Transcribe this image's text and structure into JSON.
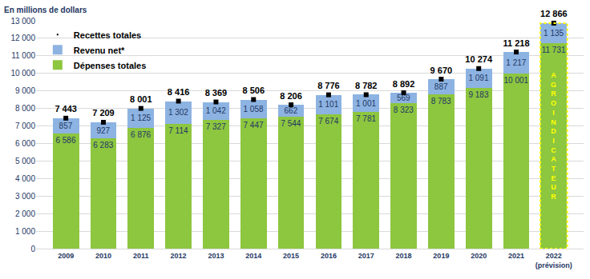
{
  "chart_data": {
    "type": "bar",
    "stacked": true,
    "data_labels": true,
    "grid": true,
    "legend": "upper left",
    "y_label": "En millions de dollars",
    "categories": [
      "2009",
      "2010",
      "2011",
      "2012",
      "2013",
      "2014",
      "2015",
      "2016",
      "2017",
      "2018",
      "2019",
      "2020",
      "2021",
      "2022 (prévision)"
    ],
    "series": [
      {
        "name": "Dépenses totales",
        "type": "bar",
        "color": "#8dc63f",
        "values": [
          6586,
          6283,
          6876,
          7114,
          7327,
          7447,
          7544,
          7674,
          7781,
          8323,
          8783,
          9183,
          10001,
          11731
        ],
        "value_labels": [
          "6 586",
          "6 283",
          "6 876",
          "7 114",
          "7 327",
          "7 447",
          "7 544",
          "7 674",
          "7 781",
          "8 323",
          "8 783",
          "9 183",
          "10 001",
          "11 731"
        ]
      },
      {
        "name": "Revenu net*",
        "type": "bar",
        "color": "#8db3e2",
        "values": [
          857,
          927,
          1125,
          1302,
          1042,
          1058,
          662,
          1101,
          1001,
          569,
          887,
          1091,
          1217,
          1135
        ],
        "value_labels": [
          "857",
          "927",
          "1 125",
          "1 302",
          "1 042",
          "1 058",
          "662",
          "1 101",
          "1 001",
          "569",
          "887",
          "1 091",
          "1 217",
          "1 135"
        ]
      },
      {
        "name": "Recettes totales",
        "type": "text",
        "color": "#000000",
        "values": [
          7443,
          7209,
          8001,
          8416,
          8369,
          8506,
          8206,
          8776,
          8782,
          8892,
          9670,
          10274,
          11218,
          12866
        ],
        "value_labels": [
          "7 443",
          "7 209",
          "8 001",
          "8 416",
          "8 369",
          "8 506",
          "8 206",
          "8 776",
          "8 782",
          "8 892",
          "9 670",
          "10 274",
          "11 218",
          "12 866"
        ]
      }
    ],
    "ylim": [
      0,
      13000
    ],
    "yticks": [
      0,
      {
        "value": 1000,
        "label": "1 000"
      },
      {
        "value": 2000,
        "label": "2 000"
      },
      {
        "value": 3000,
        "label": "3 000"
      },
      {
        "value": 4000,
        "label": "4 000"
      },
      {
        "value": 5000,
        "label": "5 000"
      },
      {
        "value": 6000,
        "label": "6 000"
      },
      {
        "value": 7000,
        "label": "7 000"
      },
      {
        "value": 8000,
        "label": "8 000"
      },
      {
        "value": 9000,
        "label": "9 000"
      },
      {
        "value": 10000,
        "label": "10 000"
      },
      {
        "value": 11000,
        "label": "11 000"
      },
      {
        "value": 12000,
        "label": "12 000"
      },
      {
        "value": 13000,
        "label": "13 000"
      }
    ],
    "annotations": [
      {
        "text": "AGROINDICATEUR",
        "category": "2022 (prévision)",
        "color": "#ffff00"
      }
    ]
  }
}
